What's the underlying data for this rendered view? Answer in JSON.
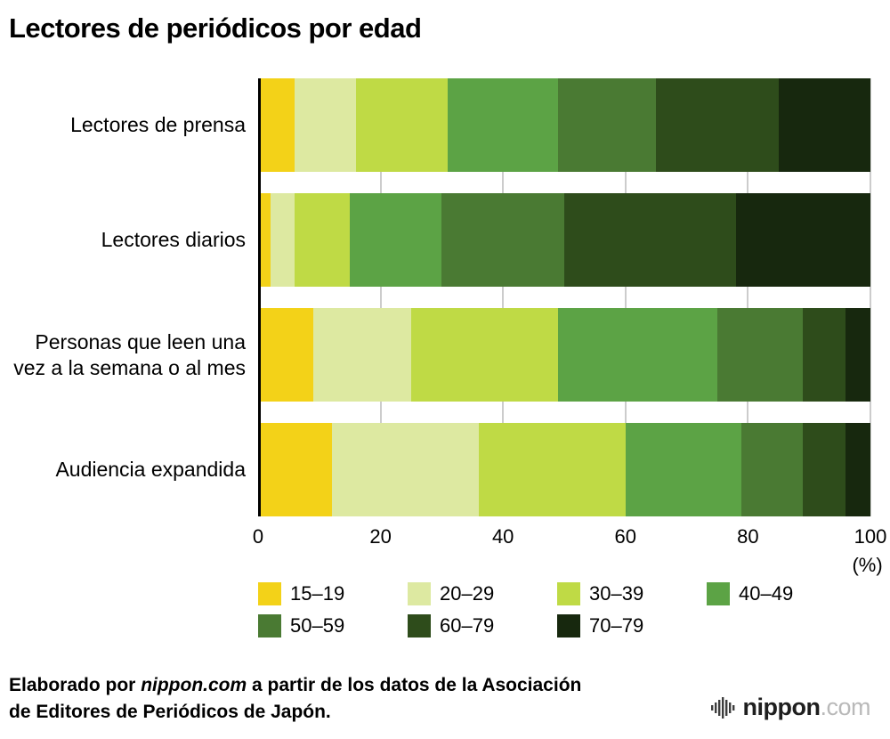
{
  "title": "Lectores de periódicos por edad",
  "chart_data": {
    "type": "bar",
    "stacked": true,
    "orientation": "horizontal",
    "unit_label": "(%)",
    "xlim": [
      0,
      100
    ],
    "x_ticks": [
      0,
      20,
      40,
      60,
      80,
      100
    ],
    "grid": true,
    "legend_position": "bottom",
    "categories": [
      "Lectores de prensa",
      "Lectores diarios",
      "Personas que leen una vez a la semana o al mes",
      "Audiencia expandida"
    ],
    "series": [
      {
        "name": "15–19",
        "color": "#f3d218",
        "values": [
          6,
          2,
          9,
          12
        ]
      },
      {
        "name": "20–29",
        "color": "#dde9a1",
        "values": [
          10,
          4,
          16,
          24
        ]
      },
      {
        "name": "30–39",
        "color": "#bfda45",
        "values": [
          15,
          9,
          24,
          24
        ]
      },
      {
        "name": "40–49",
        "color": "#5ca345",
        "values": [
          18,
          15,
          26,
          19
        ]
      },
      {
        "name": "50–59",
        "color": "#4a7a33",
        "values": [
          16,
          20,
          14,
          10
        ]
      },
      {
        "name": "60–79",
        "color": "#2e4c1b",
        "values": [
          20,
          28,
          7,
          7
        ]
      },
      {
        "name": "70–79",
        "color": "#17280e",
        "values": [
          15,
          22,
          4,
          4
        ]
      }
    ]
  },
  "footer": {
    "source_prefix": "Elaborado por ",
    "source_site": "nippon.com",
    "source_suffix": " a partir de los datos de la Asociación de Editores de Periódicos de Japón.",
    "logo_text": "nippon",
    "logo_suffix": ".com"
  }
}
